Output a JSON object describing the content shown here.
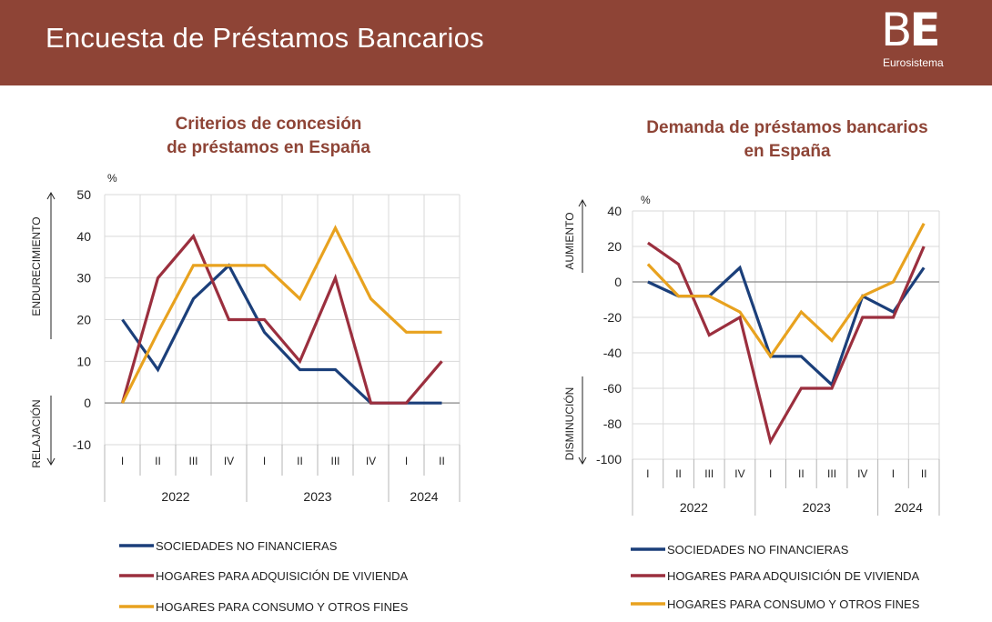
{
  "header": {
    "title": "Encuesta de Préstamos Bancarios",
    "logo_mark_light": "B",
    "logo_mark_bold": "E",
    "logo_sub": "Eurosistema",
    "background": "#8e4436"
  },
  "series_colors": {
    "sociedades": "#1b3f7a",
    "vivienda": "#9b2f3e",
    "consumo": "#e8a21f"
  },
  "chart_data": [
    {
      "type": "line",
      "title_lines": [
        "Criterios de concesión",
        "de préstamos en España"
      ],
      "unit": "%",
      "side_labels": {
        "up": "ENDURECIMIENTO",
        "down": "RELAJACIÓN"
      },
      "ylim": [
        -10,
        50
      ],
      "yticks": [
        50,
        40,
        30,
        20,
        10,
        0,
        -10
      ],
      "quarters": [
        "I",
        "II",
        "III",
        "IV",
        "I",
        "II",
        "III",
        "IV",
        "I",
        "II"
      ],
      "years": [
        {
          "label": "2022",
          "start": 0,
          "end": 3
        },
        {
          "label": "2023",
          "start": 4,
          "end": 7
        },
        {
          "label": "2024",
          "start": 8,
          "end": 9
        }
      ],
      "grid": true,
      "series": [
        {
          "name": "SOCIEDADES NO FINANCIERAS",
          "key": "sociedades",
          "values": [
            20,
            8,
            25,
            33,
            17,
            8,
            8,
            0,
            0,
            0
          ]
        },
        {
          "name": "HOGARES PARA ADQUISICIÓN DE VIVIENDA",
          "key": "vivienda",
          "values": [
            0,
            30,
            40,
            20,
            20,
            10,
            30,
            0,
            0,
            10
          ]
        },
        {
          "name": "HOGARES PARA CONSUMO Y OTROS FINES",
          "key": "consumo",
          "values": [
            0,
            17,
            33,
            33,
            33,
            25,
            42,
            25,
            17,
            17
          ]
        }
      ]
    },
    {
      "type": "line",
      "title_lines": [
        "Demanda de préstamos bancarios",
        "en España"
      ],
      "unit": "%",
      "side_labels": {
        "up": "AUMIENTO",
        "down": "DISMINUCIÓN"
      },
      "ylim": [
        -100,
        40
      ],
      "yticks": [
        40,
        20,
        0,
        -20,
        -40,
        -60,
        -80,
        -100
      ],
      "quarters": [
        "I",
        "II",
        "III",
        "IV",
        "I",
        "II",
        "III",
        "IV",
        "I",
        "II"
      ],
      "years": [
        {
          "label": "2022",
          "start": 0,
          "end": 3
        },
        {
          "label": "2023",
          "start": 4,
          "end": 7
        },
        {
          "label": "2024",
          "start": 8,
          "end": 9
        }
      ],
      "grid": true,
      "series": [
        {
          "name": "SOCIEDADES NO FINANCIERAS",
          "key": "sociedades",
          "values": [
            0,
            -8,
            -8,
            8,
            -42,
            -42,
            -58,
            -8,
            -17,
            8
          ]
        },
        {
          "name": "HOGARES PARA ADQUISICIÓN DE VIVIENDA",
          "key": "vivienda",
          "values": [
            22,
            10,
            -30,
            -20,
            -90,
            -60,
            -60,
            -20,
            -20,
            20
          ]
        },
        {
          "name": "HOGARES PARA CONSUMO Y OTROS FINES",
          "key": "consumo",
          "values": [
            10,
            -8,
            -8,
            -17,
            -42,
            -17,
            -33,
            -8,
            0,
            33
          ]
        }
      ]
    }
  ]
}
